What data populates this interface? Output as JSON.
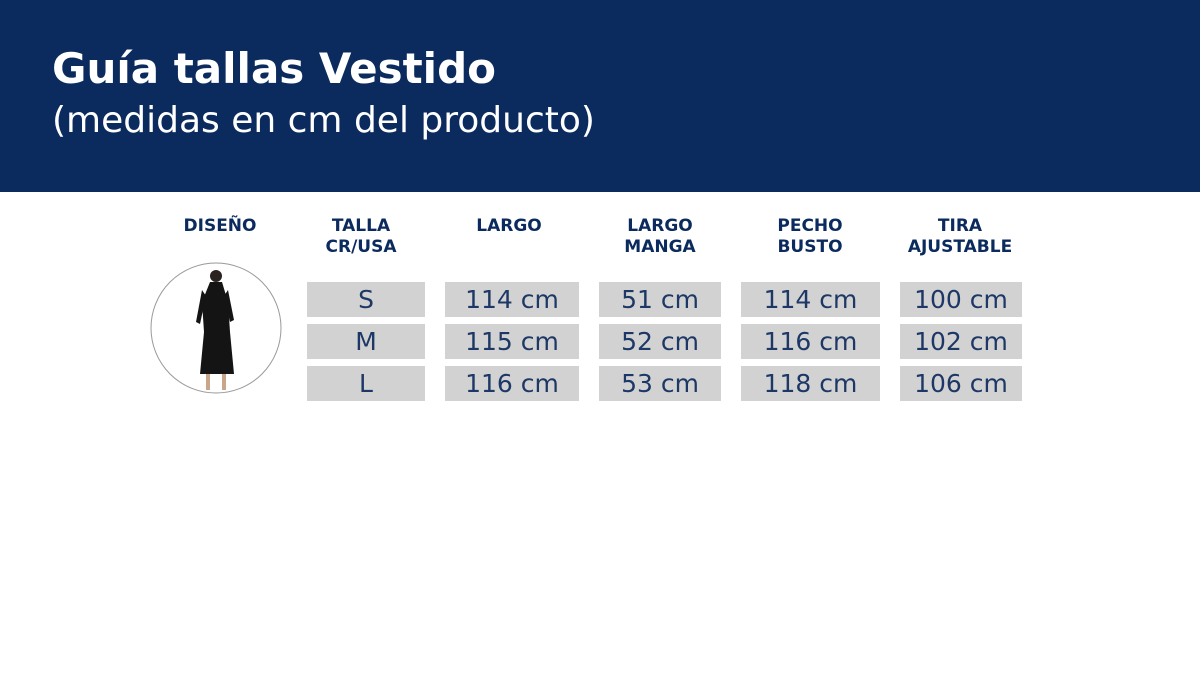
{
  "header": {
    "title": "Guía tallas Vestido",
    "subtitle": "(medidas en cm del producto)"
  },
  "table": {
    "headers": [
      [
        "DISEÑO"
      ],
      [
        "TALLA",
        "CR/USA"
      ],
      [
        "LARGO"
      ],
      [
        "LARGO",
        "MANGA"
      ],
      [
        "PECHO",
        "BUSTO"
      ],
      [
        "TIRA",
        "AJUSTABLE"
      ]
    ],
    "rows": [
      [
        "S",
        "114 cm",
        "51 cm",
        "114 cm",
        "100 cm"
      ],
      [
        "M",
        "115 cm",
        "52 cm",
        "116 cm",
        "102 cm"
      ],
      [
        "L",
        "116 cm",
        "53 cm",
        "118 cm",
        "106 cm"
      ]
    ]
  }
}
